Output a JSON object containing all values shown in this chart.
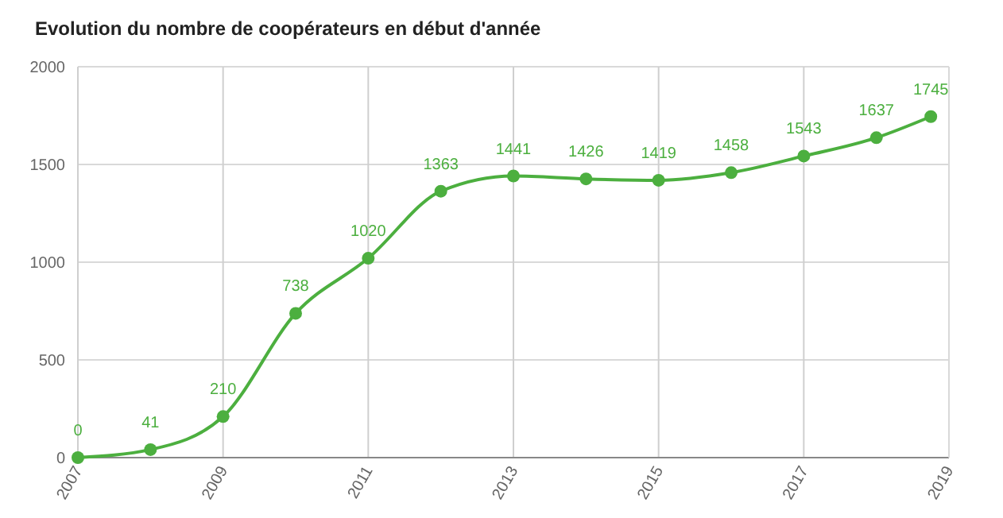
{
  "chart_data": {
    "type": "line",
    "title": "Evolution du nombre de coopérateurs en début d'année",
    "x": [
      2007,
      2008,
      2009,
      2010,
      2011,
      2012,
      2013,
      2014,
      2015,
      2016,
      2017,
      2018,
      2018.75
    ],
    "series": [
      {
        "color": "#4caf3f",
        "values": [
          0,
          41,
          210,
          738,
          1020,
          1363,
          1441,
          1426,
          1419,
          1458,
          1543,
          1637,
          1745
        ]
      }
    ],
    "xlim": [
      2007,
      2019
    ],
    "xticks": [
      2007,
      2009,
      2011,
      2013,
      2015,
      2017,
      2019
    ],
    "ylim": [
      0,
      2000
    ],
    "yticks": [
      0,
      500,
      1000,
      1500,
      2000
    ],
    "grid": true,
    "marker": "circle",
    "data_labels": true
  }
}
